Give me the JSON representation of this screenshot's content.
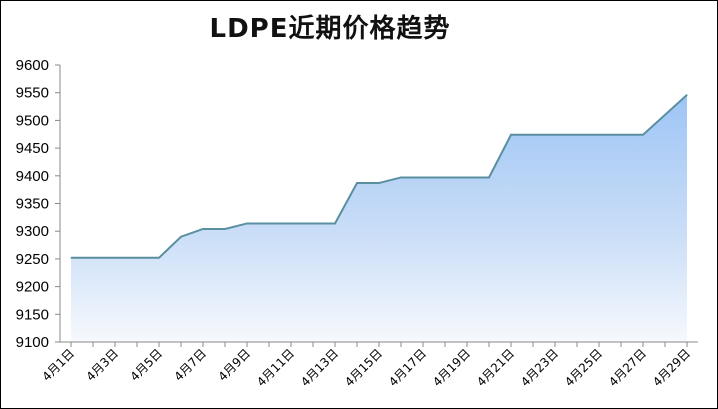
{
  "chart_data": {
    "type": "area",
    "title": "LDPE近期价格趋势",
    "xlabel": "",
    "ylabel": "",
    "ylim": [
      9100,
      9600
    ],
    "yticks": [
      9100,
      9150,
      9200,
      9250,
      9300,
      9350,
      9400,
      9450,
      9500,
      9550,
      9600
    ],
    "x": [
      "4月1日",
      "4月2日",
      "4月3日",
      "4月4日",
      "4月5日",
      "4月6日",
      "4月7日",
      "4月8日",
      "4月9日",
      "4月10日",
      "4月11日",
      "4月12日",
      "4月13日",
      "4月14日",
      "4月15日",
      "4月16日",
      "4月17日",
      "4月18日",
      "4月19日",
      "4月20日",
      "4月21日",
      "4月22日",
      "4月23日",
      "4月24日",
      "4月25日",
      "4月26日",
      "4月27日",
      "4月28日",
      "4月29日"
    ],
    "xtick_labels": [
      "4月1日",
      "4月3日",
      "4月5日",
      "4月7日",
      "4月9日",
      "4月11日",
      "4月13日",
      "4月15日",
      "4月17日",
      "4月19日",
      "4月21日",
      "4月23日",
      "4月25日",
      "4月27日",
      "4月29日"
    ],
    "values": [
      9252,
      9252,
      9252,
      9252,
      9252,
      9290,
      9304,
      9304,
      9314,
      9314,
      9314,
      9314,
      9314,
      9387,
      9387,
      9397,
      9397,
      9397,
      9397,
      9397,
      9474,
      9474,
      9474,
      9474,
      9474,
      9474,
      9474,
      9510,
      9546
    ],
    "grid": false,
    "legend": "none",
    "colors": {
      "line": "#5a8fa0",
      "fill_top": "#9ec5f5",
      "fill_bottom": "#f6f9fd"
    }
  }
}
